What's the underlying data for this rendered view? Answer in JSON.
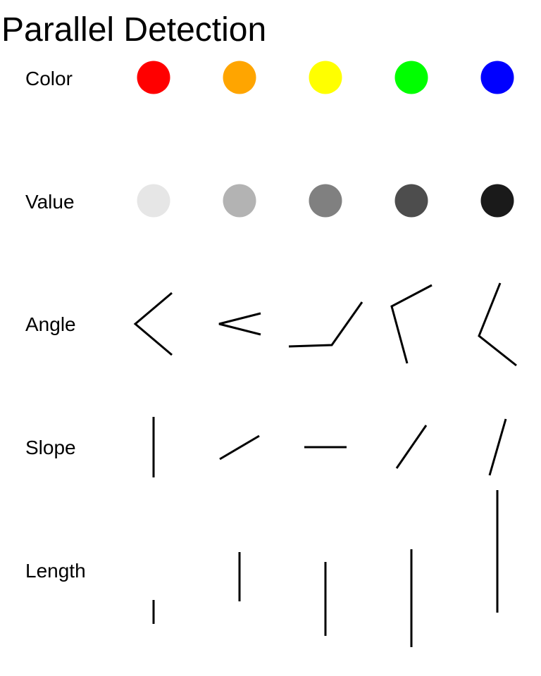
{
  "title": "Parallel Detection",
  "rows": {
    "color": {
      "label": "Color",
      "swatches": [
        "#ff0000",
        "#ffa500",
        "#ffff00",
        "#00ff00",
        "#0000ff"
      ]
    },
    "value": {
      "label": "Value",
      "swatches": [
        "#e6e6e6",
        "#b3b3b3",
        "#808080",
        "#4d4d4d",
        "#1a1a1a"
      ]
    },
    "angle": {
      "label": "Angle"
    },
    "slope": {
      "label": "Slope"
    },
    "length": {
      "label": "Length"
    }
  }
}
